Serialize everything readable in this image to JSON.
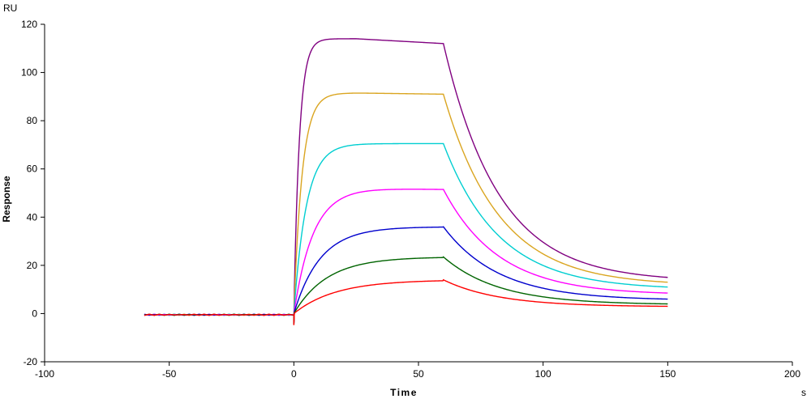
{
  "chart_data": {
    "type": "line",
    "title": "",
    "xlabel": "Time",
    "ylabel": "Response",
    "x_unit": "s",
    "y_unit": "RU",
    "xlim": [
      -100,
      200
    ],
    "ylim": [
      -20,
      120
    ],
    "x_ticks": [
      -100,
      -50,
      0,
      50,
      100,
      150,
      200
    ],
    "y_ticks": [
      -20,
      0,
      20,
      40,
      60,
      80,
      100,
      120
    ],
    "grid": false,
    "legend": "none",
    "baseline": {
      "x_start": -60,
      "x_end": 0,
      "y": -0.5
    },
    "association": {
      "x_start": 0,
      "x_end": 60
    },
    "dissociation": {
      "x_start": 60,
      "x_end": 150
    },
    "series": [
      {
        "color": "#800080",
        "plateau": 114,
        "end_of_association": 112,
        "end_value": 15,
        "rise_rate": 0.45,
        "decay_rate": 0.045
      },
      {
        "color": "#DAA520",
        "plateau": 91.5,
        "end_of_association": 91,
        "end_value": 13,
        "rise_rate": 0.3,
        "decay_rate": 0.045
      },
      {
        "color": "#00CED1",
        "plateau": 70.5,
        "end_of_association": 70.5,
        "end_value": 11,
        "rise_rate": 0.2,
        "decay_rate": 0.045
      },
      {
        "color": "#FF00FF",
        "plateau": 52,
        "end_of_association": 51.5,
        "end_value": 8.5,
        "rise_rate": 0.13,
        "decay_rate": 0.045
      },
      {
        "color": "#0000CD",
        "plateau": 36,
        "end_of_association": 36,
        "end_value": 6,
        "rise_rate": 0.095,
        "decay_rate": 0.045
      },
      {
        "color": "#006400",
        "plateau": 23.5,
        "end_of_association": 23.5,
        "end_value": 4,
        "rise_rate": 0.075,
        "decay_rate": 0.045
      },
      {
        "color": "#FF0000",
        "plateau": 14,
        "end_of_association": 14,
        "end_value": 3,
        "rise_rate": 0.06,
        "decay_rate": 0.045
      }
    ]
  }
}
